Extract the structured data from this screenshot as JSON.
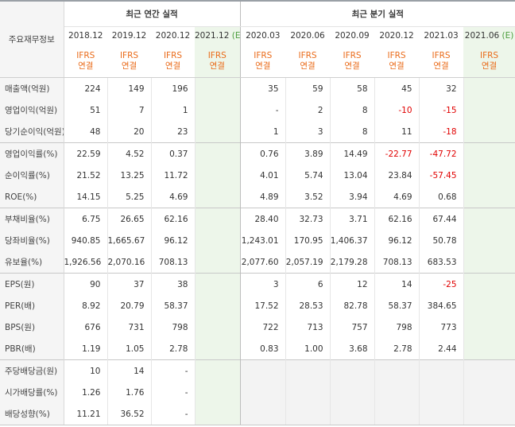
{
  "corner_label": "주요재무정보",
  "annual_header": "최근 연간 실적",
  "quarter_header": "최근 분기 실적",
  "annual_periods": [
    "2018.12",
    "2019.12",
    "2020.12",
    "2021.12"
  ],
  "annual_est_suffix": "(E)",
  "quarter_periods": [
    "2020.03",
    "2020.06",
    "2020.09",
    "2020.12",
    "2021.03",
    "2021.06"
  ],
  "quarter_est_suffix": "(E)",
  "ifrs_line1": "IFRS",
  "ifrs_line2": "연결",
  "colors": {
    "negative": "#e10000",
    "ifrs": "#ea6b1a",
    "estimate_bg": "#edf6ea",
    "estimate_tag": "#4a9d3c"
  },
  "rows": [
    {
      "label": "매출액(억원)",
      "annual": [
        "224",
        "149",
        "196",
        ""
      ],
      "quarter": [
        "35",
        "59",
        "58",
        "45",
        "32",
        ""
      ]
    },
    {
      "label": "영업이익(억원)",
      "annual": [
        "51",
        "7",
        "1",
        ""
      ],
      "quarter": [
        "-",
        "2",
        "8",
        "-10",
        "-15",
        ""
      ]
    },
    {
      "label": "당기순이익(억원)",
      "annual": [
        "48",
        "20",
        "23",
        ""
      ],
      "quarter": [
        "1",
        "3",
        "8",
        "11",
        "-18",
        ""
      ]
    },
    {
      "label": "영업이익률(%)",
      "annual": [
        "22.59",
        "4.52",
        "0.37",
        ""
      ],
      "quarter": [
        "0.76",
        "3.89",
        "14.49",
        "-22.77",
        "-47.72",
        ""
      ]
    },
    {
      "label": "순이익률(%)",
      "annual": [
        "21.52",
        "13.25",
        "11.72",
        ""
      ],
      "quarter": [
        "4.01",
        "5.74",
        "13.04",
        "23.84",
        "-57.45",
        ""
      ]
    },
    {
      "label": "ROE(%)",
      "annual": [
        "14.15",
        "5.25",
        "4.69",
        ""
      ],
      "quarter": [
        "4.89",
        "3.52",
        "3.94",
        "4.69",
        "0.68",
        ""
      ]
    },
    {
      "label": "부채비율(%)",
      "annual": [
        "6.75",
        "26.65",
        "62.16",
        ""
      ],
      "quarter": [
        "28.40",
        "32.73",
        "3.71",
        "62.16",
        "67.44",
        ""
      ]
    },
    {
      "label": "당좌비율(%)",
      "annual": [
        "940.85",
        "1,665.67",
        "96.12",
        ""
      ],
      "quarter": [
        "1,243.01",
        "170.95",
        "1,406.37",
        "96.12",
        "50.78",
        ""
      ]
    },
    {
      "label": "유보율(%)",
      "annual": [
        "1,926.56",
        "2,070.16",
        "708.13",
        ""
      ],
      "quarter": [
        "2,077.60",
        "2,057.19",
        "2,179.28",
        "708.13",
        "683.53",
        ""
      ]
    },
    {
      "label": "EPS(원)",
      "annual": [
        "90",
        "37",
        "38",
        ""
      ],
      "quarter": [
        "3",
        "6",
        "12",
        "14",
        "-25",
        ""
      ]
    },
    {
      "label": "PER(배)",
      "annual": [
        "8.92",
        "20.79",
        "58.37",
        ""
      ],
      "quarter": [
        "17.52",
        "28.53",
        "82.78",
        "58.37",
        "384.65",
        ""
      ]
    },
    {
      "label": "BPS(원)",
      "annual": [
        "676",
        "731",
        "798",
        ""
      ],
      "quarter": [
        "722",
        "713",
        "757",
        "798",
        "773",
        ""
      ]
    },
    {
      "label": "PBR(배)",
      "annual": [
        "1.19",
        "1.05",
        "2.78",
        ""
      ],
      "quarter": [
        "0.83",
        "1.00",
        "3.68",
        "2.78",
        "2.44",
        ""
      ]
    },
    {
      "label": "주당배당금(원)",
      "annual": [
        "10",
        "14",
        "-",
        ""
      ],
      "quarter": [
        "",
        "",
        "",
        "",
        "",
        ""
      ],
      "quarter_empty": true
    },
    {
      "label": "시가배당률(%)",
      "annual": [
        "1.26",
        "1.76",
        "-",
        ""
      ],
      "quarter": [
        "",
        "",
        "",
        "",
        "",
        ""
      ],
      "quarter_empty": true
    },
    {
      "label": "배당성향(%)",
      "annual": [
        "11.21",
        "36.52",
        "-",
        ""
      ],
      "quarter": [
        "",
        "",
        "",
        "",
        "",
        ""
      ],
      "quarter_empty": true
    }
  ]
}
